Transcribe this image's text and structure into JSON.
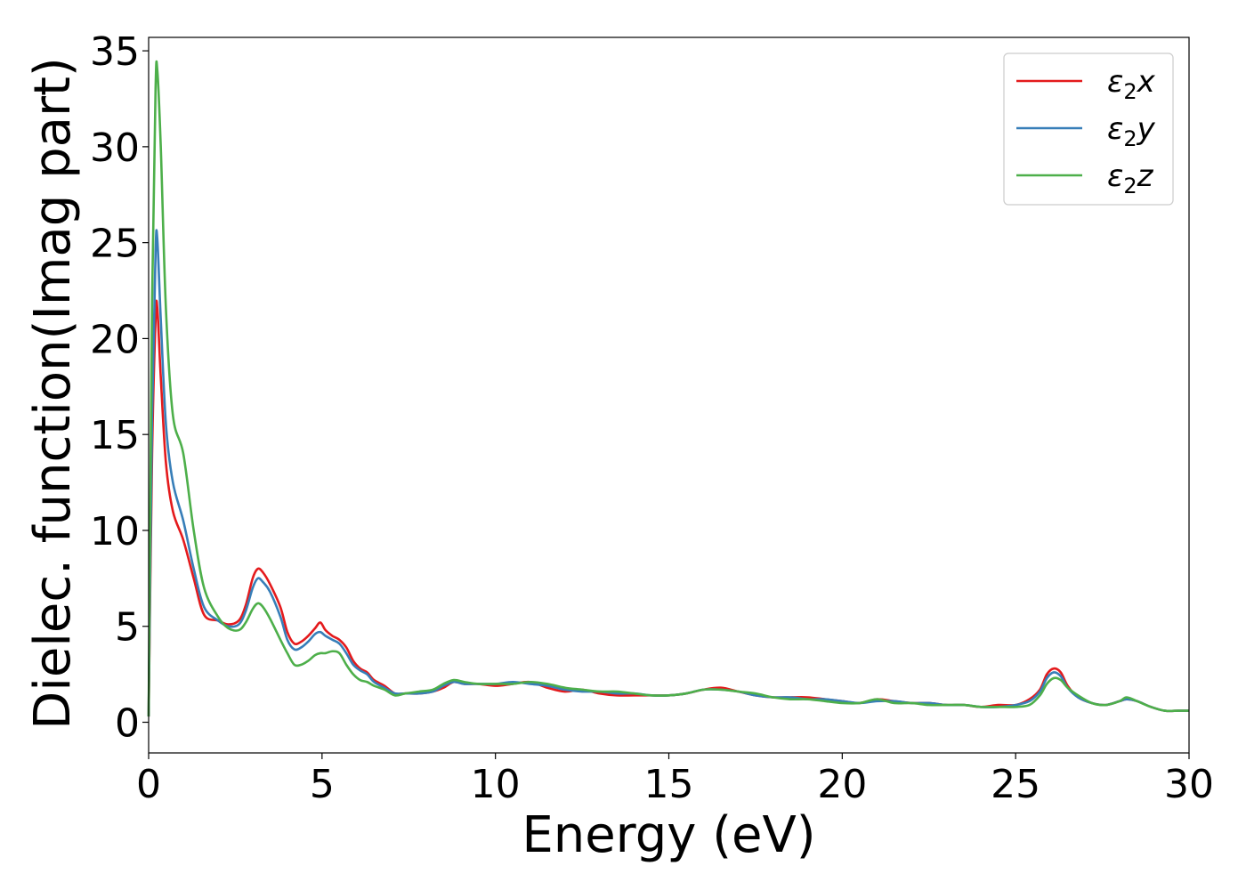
{
  "chart_data": {
    "type": "line",
    "title": "",
    "xlabel": "Energy (eV)",
    "ylabel": "Dielec. function(Imag part)",
    "xlim": [
      0,
      30
    ],
    "ylim": [
      -1.6,
      35.7
    ],
    "xticks": [
      0,
      5,
      10,
      15,
      20,
      25,
      30
    ],
    "xtick_labels": [
      "0",
      "5",
      "10",
      "15",
      "20",
      "25",
      "30"
    ],
    "yticks": [
      0,
      5,
      10,
      15,
      20,
      25,
      30,
      35
    ],
    "ytick_labels": [
      "0",
      "5",
      "10",
      "15",
      "20",
      "25",
      "30",
      "35"
    ],
    "grid": false,
    "legend_position": "top-right",
    "series": [
      {
        "name": "ε₂x",
        "legend_base": "ε",
        "legend_sub": "2",
        "legend_suffix": "x",
        "color": "#e41a1c",
        "x": [
          0,
          0.1,
          0.2,
          0.25,
          0.35,
          0.5,
          0.7,
          1.0,
          1.3,
          1.6,
          2.0,
          2.3,
          2.6,
          2.8,
          3.0,
          3.15,
          3.3,
          3.5,
          3.8,
          4.0,
          4.2,
          4.4,
          4.6,
          4.8,
          4.95,
          5.1,
          5.3,
          5.5,
          5.7,
          5.9,
          6.1,
          6.3,
          6.5,
          6.8,
          7.1,
          7.4,
          7.8,
          8.2,
          8.5,
          8.8,
          9.1,
          9.5,
          10.0,
          10.5,
          11.0,
          11.5,
          12.0,
          12.5,
          13.0,
          13.5,
          14.0,
          14.5,
          15.0,
          15.5,
          16.0,
          16.5,
          17.0,
          17.5,
          18.0,
          18.5,
          19.0,
          19.5,
          20.0,
          20.5,
          21.0,
          21.5,
          22.0,
          22.5,
          23.0,
          23.5,
          24.0,
          24.5,
          25.0,
          25.4,
          25.7,
          25.9,
          26.1,
          26.3,
          26.5,
          26.8,
          27.2,
          27.6,
          28.0,
          28.2,
          28.5,
          28.9,
          29.3,
          29.7,
          30.0
        ],
        "y": [
          0.3,
          14.0,
          21.0,
          21.6,
          18.0,
          13.5,
          11.0,
          9.5,
          7.5,
          5.6,
          5.3,
          5.1,
          5.3,
          6.1,
          7.5,
          8.0,
          7.8,
          7.2,
          6.0,
          4.7,
          4.1,
          4.2,
          4.5,
          4.9,
          5.2,
          4.8,
          4.5,
          4.3,
          3.9,
          3.2,
          2.8,
          2.6,
          2.2,
          1.9,
          1.5,
          1.5,
          1.5,
          1.6,
          1.8,
          2.1,
          2.0,
          2.0,
          1.9,
          2.0,
          2.1,
          1.8,
          1.6,
          1.7,
          1.5,
          1.4,
          1.4,
          1.4,
          1.4,
          1.5,
          1.7,
          1.8,
          1.6,
          1.4,
          1.3,
          1.3,
          1.3,
          1.2,
          1.1,
          1.0,
          1.2,
          1.1,
          1.0,
          1.0,
          0.9,
          0.9,
          0.8,
          0.9,
          0.9,
          1.2,
          1.7,
          2.5,
          2.8,
          2.6,
          1.9,
          1.3,
          1.0,
          0.9,
          1.1,
          1.2,
          1.1,
          0.8,
          0.6,
          0.6,
          0.6
        ]
      },
      {
        "name": "ε₂y",
        "legend_base": "ε",
        "legend_sub": "2",
        "legend_suffix": "y",
        "color": "#377eb8",
        "x": [
          0,
          0.1,
          0.2,
          0.25,
          0.35,
          0.5,
          0.7,
          1.0,
          1.3,
          1.6,
          2.0,
          2.3,
          2.6,
          2.8,
          3.0,
          3.15,
          3.3,
          3.5,
          3.8,
          4.0,
          4.2,
          4.4,
          4.6,
          4.8,
          4.95,
          5.1,
          5.3,
          5.5,
          5.7,
          5.9,
          6.1,
          6.3,
          6.5,
          6.8,
          7.1,
          7.4,
          7.8,
          8.2,
          8.5,
          8.8,
          9.1,
          9.5,
          10.0,
          10.5,
          11.0,
          11.5,
          12.0,
          12.5,
          13.0,
          13.5,
          14.0,
          14.5,
          15.0,
          15.5,
          16.0,
          16.5,
          17.0,
          17.5,
          18.0,
          18.5,
          19.0,
          19.5,
          20.0,
          20.5,
          21.0,
          21.5,
          22.0,
          22.5,
          23.0,
          23.5,
          24.0,
          24.5,
          25.0,
          25.4,
          25.7,
          25.9,
          26.1,
          26.3,
          26.5,
          26.8,
          27.2,
          27.6,
          28.0,
          28.2,
          28.5,
          28.9,
          29.3,
          29.7,
          30.0
        ],
        "y": [
          0.3,
          16.0,
          24.5,
          25.2,
          21.0,
          15.5,
          12.5,
          10.5,
          8.0,
          6.0,
          5.3,
          5.0,
          5.1,
          5.8,
          7.0,
          7.5,
          7.3,
          6.8,
          5.5,
          4.3,
          3.8,
          3.9,
          4.2,
          4.6,
          4.7,
          4.5,
          4.3,
          4.1,
          3.6,
          3.0,
          2.7,
          2.5,
          2.1,
          1.8,
          1.5,
          1.5,
          1.5,
          1.6,
          1.9,
          2.1,
          2.0,
          2.0,
          2.0,
          2.1,
          2.0,
          1.9,
          1.7,
          1.6,
          1.6,
          1.5,
          1.5,
          1.4,
          1.4,
          1.5,
          1.7,
          1.7,
          1.6,
          1.4,
          1.3,
          1.3,
          1.2,
          1.2,
          1.1,
          1.0,
          1.1,
          1.1,
          1.0,
          1.0,
          0.9,
          0.9,
          0.8,
          0.8,
          0.9,
          1.1,
          1.6,
          2.3,
          2.6,
          2.4,
          1.8,
          1.3,
          1.0,
          0.9,
          1.1,
          1.2,
          1.1,
          0.8,
          0.6,
          0.6,
          0.6
        ]
      },
      {
        "name": "ε₂z",
        "legend_base": "ε",
        "legend_sub": "2",
        "legend_suffix": "z",
        "color": "#4daf4a",
        "x": [
          0,
          0.1,
          0.2,
          0.25,
          0.35,
          0.5,
          0.7,
          1.0,
          1.3,
          1.6,
          2.0,
          2.3,
          2.6,
          2.8,
          3.0,
          3.15,
          3.3,
          3.5,
          3.8,
          4.0,
          4.2,
          4.4,
          4.6,
          4.8,
          4.95,
          5.1,
          5.3,
          5.5,
          5.7,
          5.9,
          6.1,
          6.3,
          6.5,
          6.8,
          7.1,
          7.4,
          7.8,
          8.2,
          8.5,
          8.8,
          9.1,
          9.5,
          10.0,
          10.5,
          11.0,
          11.5,
          12.0,
          12.5,
          13.0,
          13.5,
          14.0,
          14.5,
          15.0,
          15.5,
          16.0,
          16.5,
          17.0,
          17.5,
          18.0,
          18.5,
          19.0,
          19.5,
          20.0,
          20.5,
          21.0,
          21.5,
          22.0,
          22.5,
          23.0,
          23.5,
          24.0,
          24.5,
          25.0,
          25.4,
          25.7,
          25.9,
          26.1,
          26.3,
          26.5,
          26.8,
          27.2,
          27.6,
          28.0,
          28.2,
          28.5,
          28.9,
          29.3,
          29.7,
          30.0
        ],
        "y": [
          0.3,
          22.0,
          33.0,
          34.0,
          30.0,
          21.5,
          16.0,
          14.0,
          10.0,
          7.0,
          5.5,
          4.9,
          4.8,
          5.2,
          5.9,
          6.2,
          6.0,
          5.4,
          4.3,
          3.6,
          3.0,
          3.0,
          3.2,
          3.5,
          3.6,
          3.6,
          3.7,
          3.6,
          3.0,
          2.5,
          2.2,
          2.1,
          1.9,
          1.7,
          1.4,
          1.5,
          1.6,
          1.7,
          2.0,
          2.2,
          2.1,
          2.0,
          2.0,
          2.0,
          2.1,
          2.0,
          1.8,
          1.7,
          1.6,
          1.6,
          1.5,
          1.4,
          1.4,
          1.5,
          1.7,
          1.7,
          1.6,
          1.5,
          1.3,
          1.2,
          1.2,
          1.1,
          1.0,
          1.0,
          1.2,
          1.0,
          1.0,
          0.9,
          0.9,
          0.9,
          0.8,
          0.8,
          0.8,
          0.9,
          1.4,
          2.0,
          2.3,
          2.2,
          1.8,
          1.4,
          1.0,
          0.9,
          1.1,
          1.3,
          1.1,
          0.8,
          0.6,
          0.6,
          0.6
        ]
      }
    ]
  }
}
